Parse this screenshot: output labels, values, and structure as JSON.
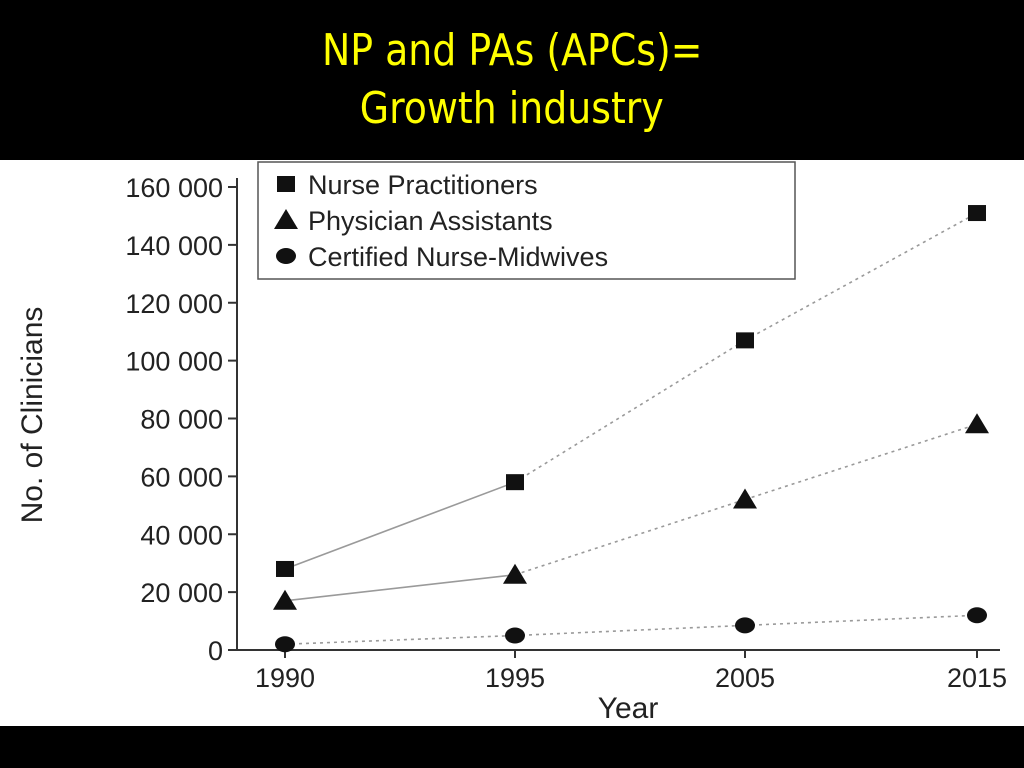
{
  "slide": {
    "title_line1": "NP and PAs (APCs)=",
    "title_line2": "Growth industry",
    "title_color": "#ffff00",
    "background": "#000000"
  },
  "chart_data": {
    "type": "line",
    "x": [
      "1990",
      "1995",
      "2005",
      "2015"
    ],
    "xlabel": "Year",
    "ylabel": "No. of Clinicians",
    "ylim": [
      0,
      160000
    ],
    "yticks": [
      "0",
      "20 000",
      "40 000",
      "60 000",
      "80 000",
      "100 000",
      "120 000",
      "140 000",
      "160 000"
    ],
    "legend_position": "top-left",
    "grid": false,
    "series": [
      {
        "name": "Nurse Practitioners",
        "marker": "square",
        "values": [
          28000,
          58000,
          107000,
          151000
        ]
      },
      {
        "name": "Physician Assistants",
        "marker": "triangle",
        "values": [
          17000,
          26000,
          52000,
          78000
        ]
      },
      {
        "name": "Certified Nurse-Midwives",
        "marker": "circle",
        "values": [
          2000,
          5000,
          8500,
          12000
        ]
      }
    ]
  }
}
